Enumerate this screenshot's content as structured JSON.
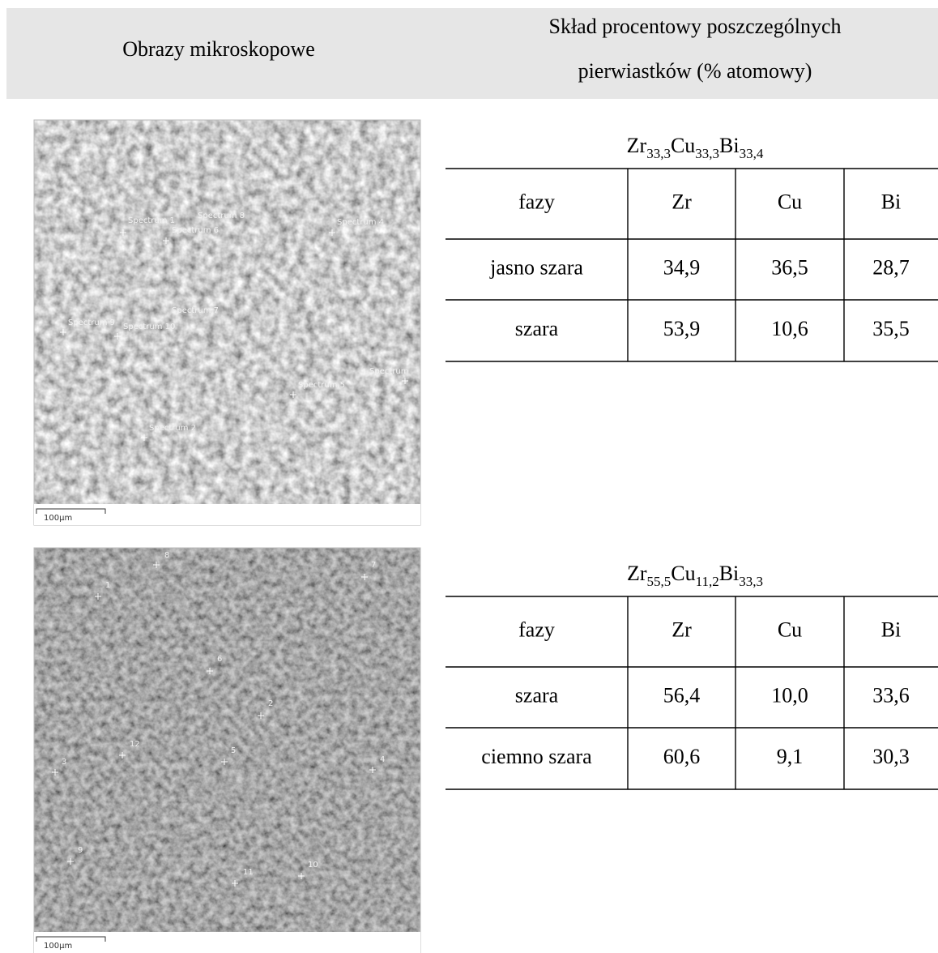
{
  "header": {
    "left": "Obrazy mikroskopowe",
    "right": [
      "Skład procentowy poszczególnych",
      "pierwiastków (% atomowy)"
    ]
  },
  "samples": [
    {
      "image": {
        "scale": "100µm",
        "labels": [
          "Spectrum 1",
          "Spectrum 8",
          "Spectrum 6",
          "Spectrum 4",
          "Spectrum 7",
          "Spectrum 9",
          "Spectrum 10",
          "Spectrum 5",
          "Spectrum",
          "Spectrum 2"
        ]
      },
      "formula": [
        {
          "el": "Zr",
          "sub": "33,3"
        },
        {
          "el": "Cu",
          "sub": "33,3"
        },
        {
          "el": "Bi",
          "sub": "33,4"
        }
      ],
      "table": {
        "header": [
          "fazy",
          "Zr",
          "Cu",
          "Bi"
        ],
        "rows": [
          [
            "jasno szara",
            "34,9",
            "36,5",
            "28,7"
          ],
          [
            "szara",
            "53,9",
            "10,6",
            "35,5"
          ]
        ]
      }
    },
    {
      "image": {
        "scale": "100µm",
        "labels": [
          "8",
          "7",
          "1",
          "6",
          "2",
          "12",
          "5",
          "3",
          "4",
          "9",
          "11",
          "10"
        ]
      },
      "formula": [
        {
          "el": "Zr",
          "sub": "55,5"
        },
        {
          "el": "Cu",
          "sub": "11,2"
        },
        {
          "el": "Bi",
          "sub": "33,3"
        }
      ],
      "table": {
        "header": [
          "fazy",
          "Zr",
          "Cu",
          "Bi"
        ],
        "rows": [
          [
            "szara",
            "56,4",
            "10,0",
            "33,6"
          ],
          [
            "ciemno szara",
            "60,6",
            "9,1",
            "30,3"
          ]
        ]
      }
    }
  ]
}
